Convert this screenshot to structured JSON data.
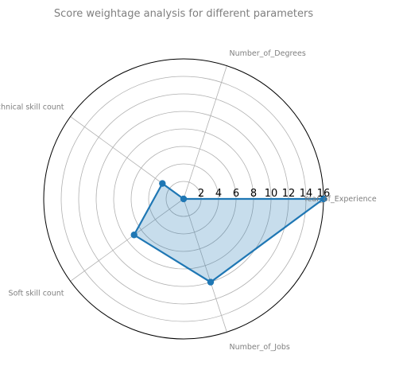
{
  "chart_data": {
    "type": "radar",
    "title": "Score weightage analysis for different parameters",
    "axes": [
      "Year_of_Experience",
      "Number_of_Degrees",
      "Technical skill count",
      "Soft skill count",
      "Number_of_Jobs"
    ],
    "values": [
      16,
      0,
      3,
      7,
      10
    ],
    "rlim": [
      0,
      16
    ],
    "radial_ticks": [
      2,
      4,
      6,
      8,
      10,
      12,
      14,
      16
    ],
    "grid": true,
    "colors": {
      "line": "#1f77b4",
      "fill": "#1f77b4",
      "grid": "#b0b0b0",
      "spine": "#000000",
      "text": "#7f7f7f"
    }
  }
}
